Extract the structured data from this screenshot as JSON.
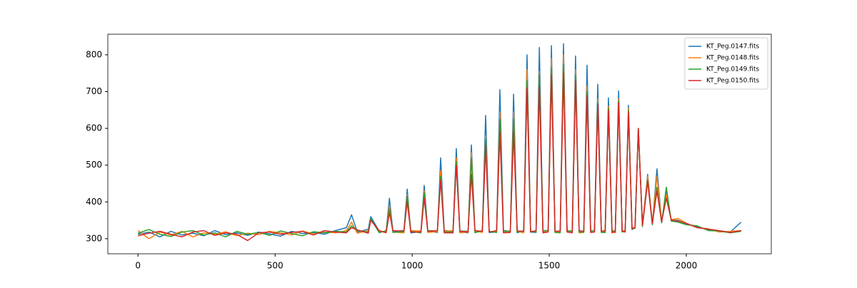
{
  "chart_data": {
    "type": "line",
    "x": [
      0,
      40,
      80,
      120,
      160,
      200,
      240,
      280,
      320,
      360,
      400,
      440,
      480,
      520,
      560,
      600,
      640,
      680,
      720,
      760,
      779,
      800,
      840,
      849,
      880,
      905,
      917,
      930,
      970,
      982,
      995,
      1032,
      1044,
      1057,
      1092,
      1104,
      1117,
      1149,
      1161,
      1174,
      1204,
      1216,
      1229,
      1256,
      1268,
      1281,
      1308,
      1320,
      1333,
      1358,
      1370,
      1383,
      1407,
      1419,
      1432,
      1452,
      1464,
      1477,
      1496,
      1508,
      1521,
      1540,
      1552,
      1565,
      1584,
      1596,
      1609,
      1626,
      1638,
      1651,
      1665,
      1677,
      1690,
      1704,
      1716,
      1729,
      1741,
      1753,
      1766,
      1777,
      1789,
      1802,
      1813,
      1825,
      1840,
      1859,
      1876,
      1893,
      1910,
      1927,
      1945,
      1970,
      2000,
      2040,
      2080,
      2120,
      2160,
      2200
    ],
    "series": [
      {
        "name": "KT_Peg.0147.fits",
        "color": "#1f77b4",
        "values": [
          312,
          318,
          305,
          320,
          310,
          315,
          308,
          322,
          311,
          316,
          309,
          318,
          313,
          307,
          320,
          314,
          317,
          312,
          322,
          330,
          365,
          318,
          326,
          360,
          320,
          318,
          410,
          320,
          322,
          435,
          316,
          319,
          445,
          321,
          317,
          520,
          322,
          320,
          545,
          318,
          316,
          555,
          320,
          321,
          635,
          317,
          318,
          705,
          322,
          320,
          693,
          316,
          322,
          800,
          318,
          317,
          820,
          321,
          320,
          825,
          319,
          318,
          830,
          322,
          321,
          797,
          317,
          319,
          772,
          320,
          322,
          720,
          318,
          317,
          683,
          321,
          320,
          702,
          319,
          323,
          663,
          325,
          330,
          600,
          335,
          475,
          340,
          490,
          345,
          430,
          350,
          350,
          340,
          332,
          325,
          320,
          318,
          345
        ]
      },
      {
        "name": "KT_Peg.0148.fits",
        "color": "#ff7f0e",
        "values": [
          322,
          300,
          318,
          310,
          320,
          305,
          316,
          312,
          319,
          308,
          315,
          311,
          320,
          316,
          310,
          321,
          313,
          318,
          316,
          322,
          345,
          315,
          322,
          352,
          318,
          320,
          390,
          318,
          316,
          420,
          322,
          321,
          430,
          317,
          319,
          485,
          320,
          322,
          520,
          316,
          318,
          535,
          321,
          317,
          580,
          319,
          320,
          645,
          318,
          322,
          645,
          320,
          316,
          760,
          321,
          319,
          755,
          317,
          321,
          790,
          320,
          318,
          800,
          322,
          320,
          760,
          316,
          317,
          715,
          321,
          322,
          680,
          318,
          319,
          660,
          320,
          316,
          680,
          322,
          321,
          655,
          326,
          332,
          600,
          337,
          470,
          342,
          470,
          347,
          420,
          352,
          355,
          342,
          330,
          327,
          318,
          320,
          322
        ]
      },
      {
        "name": "KT_Peg.0149.fits",
        "color": "#2ca02c",
        "values": [
          315,
          325,
          312,
          306,
          318,
          322,
          310,
          316,
          305,
          320,
          312,
          317,
          309,
          321,
          314,
          308,
          319,
          316,
          320,
          318,
          335,
          322,
          318,
          355,
          316,
          322,
          380,
          317,
          319,
          415,
          320,
          316,
          425,
          322,
          321,
          470,
          318,
          318,
          510,
          321,
          320,
          520,
          316,
          322,
          570,
          320,
          317,
          625,
          321,
          319,
          625,
          318,
          321,
          730,
          320,
          318,
          745,
          322,
          322,
          765,
          317,
          316,
          775,
          320,
          320,
          745,
          318,
          318,
          700,
          322,
          321,
          670,
          317,
          317,
          655,
          320,
          322,
          675,
          318,
          320,
          650,
          328,
          328,
          600,
          333,
          460,
          338,
          440,
          343,
          440,
          348,
          345,
          338,
          335,
          322,
          321,
          316,
          320
        ]
      },
      {
        "name": "KT_Peg.0150.fits",
        "color": "#d62728",
        "values": [
          308,
          315,
          320,
          312,
          305,
          318,
          322,
          309,
          316,
          312,
          295,
          316,
          318,
          312,
          317,
          320,
          310,
          322,
          318,
          316,
          330,
          324,
          315,
          350,
          322,
          316,
          370,
          322,
          321,
          400,
          318,
          318,
          410,
          320,
          322,
          460,
          316,
          316,
          500,
          320,
          319,
          475,
          322,
          320,
          550,
          318,
          322,
          590,
          316,
          317,
          590,
          321,
          320,
          710,
          318,
          322,
          715,
          316,
          318,
          745,
          320,
          321,
          750,
          318,
          316,
          730,
          322,
          320,
          690,
          317,
          318,
          665,
          320,
          322,
          650,
          316,
          319,
          670,
          321,
          318,
          645,
          327,
          331,
          600,
          336,
          455,
          341,
          430,
          346,
          410,
          351,
          348,
          342,
          330,
          326,
          322,
          317,
          322
        ]
      }
    ],
    "xlim": [
      -110,
      2310
    ],
    "ylim": [
      259,
      856
    ],
    "xticks": [
      0,
      500,
      1000,
      1500,
      2000
    ],
    "yticks": [
      300,
      400,
      500,
      600,
      700,
      800
    ],
    "grid": false,
    "legend": "upper right"
  }
}
